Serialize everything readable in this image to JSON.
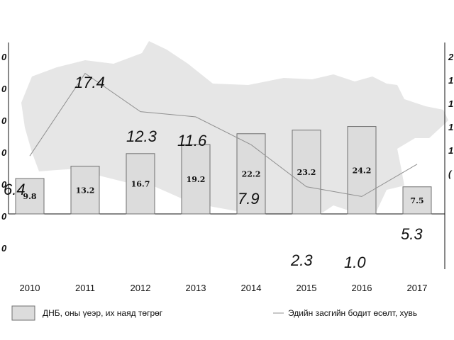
{
  "chart_data": {
    "type": "bar",
    "categories": [
      "2010",
      "2011",
      "2012",
      "2013",
      "2014",
      "2015",
      "2016",
      "2017"
    ],
    "series": [
      {
        "name": "ДНБ, оны үеэр, их наяд төгрөг",
        "type": "bar",
        "values": [
          9.8,
          13.2,
          16.7,
          19.2,
          22.2,
          23.2,
          24.2,
          7.5
        ],
        "color": "#dcdcdc"
      },
      {
        "name": "Эдийн засгийн бодит өсөлт, хувь",
        "type": "line",
        "values": [
          6.4,
          17.4,
          12.3,
          11.6,
          7.9,
          2.3,
          1.0,
          5.3
        ],
        "color": "#909090"
      }
    ],
    "title": "",
    "xlabel": "",
    "ylabel": "",
    "left_axis_ticks": [
      "0",
      "0",
      "0",
      "0",
      "0",
      "0",
      "0"
    ],
    "right_axis_ticks": [
      "2",
      "1",
      "1",
      "1",
      "1",
      "(",
      "",
      ""
    ],
    "background_shape": "Mongolia map silhouette",
    "background_color": "#e6e6e6",
    "legend_position": "bottom"
  }
}
